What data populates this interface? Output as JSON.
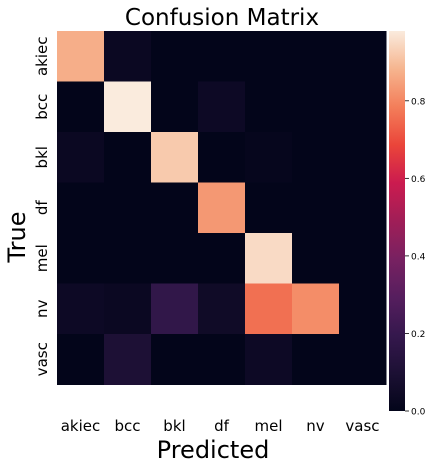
{
  "chart_data": {
    "type": "heatmap",
    "title": "Confusion Matrix",
    "xlabel": "Predicted",
    "ylabel": "True",
    "x_categories": [
      "akiec",
      "bcc",
      "bkl",
      "df",
      "mel",
      "nv",
      "vasc"
    ],
    "y_categories": [
      "akiec",
      "bcc",
      "bkl",
      "df",
      "mel",
      "nv",
      "vasc"
    ],
    "values": [
      [
        0.87,
        0.03,
        0.0,
        0.0,
        0.0,
        0.0,
        0.0
      ],
      [
        0.0,
        0.98,
        0.0,
        0.04,
        0.0,
        0.0,
        0.0
      ],
      [
        0.03,
        0.0,
        0.92,
        0.0,
        0.01,
        0.0,
        0.0
      ],
      [
        0.0,
        0.0,
        0.0,
        0.83,
        0.0,
        0.0,
        0.0
      ],
      [
        0.0,
        0.0,
        0.0,
        0.0,
        0.95,
        0.0,
        0.0
      ],
      [
        0.04,
        0.03,
        0.18,
        0.05,
        0.76,
        0.81,
        0.0
      ],
      [
        0.0,
        0.1,
        0.0,
        0.0,
        0.04,
        0.0,
        0.0
      ]
    ],
    "colormap": "rocket",
    "vmin": 0,
    "vmax": 0.98,
    "colorbar_ticks": [
      "0.0",
      "0.2",
      "0.4",
      "0.6",
      "0.8"
    ],
    "colorbar_tick_values": [
      0.0,
      0.2,
      0.4,
      0.6,
      0.8
    ]
  }
}
